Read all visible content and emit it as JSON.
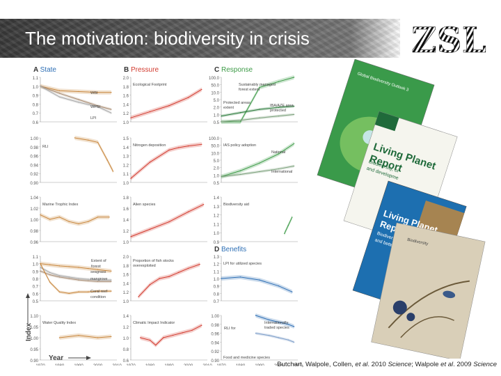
{
  "slide": {
    "title": "The motivation: biodiversity in crisis",
    "logo_text": "ZSL",
    "citation": {
      "part1": "Butchart, Walpole, Collen, ",
      "etal1": "et al",
      "part2": ". 2010 ",
      "journal1": "Science",
      "part3": "; Walpole ",
      "etal2": "et al",
      "part4": ". 2009 ",
      "journal2": "Science"
    }
  },
  "figure": {
    "y_axis_title": "Index",
    "x_axis_title": "Year",
    "x_ticks": [
      "1970",
      "1980",
      "1990",
      "2000",
      "2010"
    ],
    "sections": {
      "state": {
        "letter": "A",
        "label": "State",
        "color": "#2e6fb5"
      },
      "pressure": {
        "letter": "B",
        "label": "Pressure",
        "color": "#d23a2e"
      },
      "response": {
        "letter": "C",
        "label": "Response",
        "color": "#3c9a46"
      },
      "benefits": {
        "letter": "D",
        "label": "Benefits",
        "color": "#2e6fb5"
      }
    }
  },
  "chart_data": [
    {
      "type": "line",
      "panel": "A1",
      "x": [
        1970,
        1980,
        1990,
        2000,
        2007
      ],
      "series": [
        {
          "name": "WBI",
          "values": [
            1.0,
            0.95,
            0.94,
            0.93,
            0.93
          ],
          "color": "#c8863c"
        },
        {
          "name": "WPSI",
          "values": [
            1.0,
            0.92,
            0.85,
            0.78,
            0.74
          ],
          "color": "#a88a70"
        },
        {
          "name": "LPI",
          "values": [
            1.0,
            0.88,
            0.82,
            0.77,
            0.7
          ],
          "color": "#a8a8a8"
        }
      ],
      "y_ticks": [
        "1.1",
        "1.0",
        "0.9",
        "0.8",
        "0.7",
        "0.6"
      ],
      "ylim": [
        0.6,
        1.1
      ]
    },
    {
      "type": "line",
      "panel": "A2",
      "x": [
        1988,
        1995,
        2000,
        2005,
        2008
      ],
      "series": [
        {
          "name": "RLI",
          "values": [
            1.0,
            0.995,
            0.99,
            0.95,
            0.925
          ],
          "color": "#c8863c"
        }
      ],
      "y_ticks": [
        "1.00",
        "0.98",
        "0.96",
        "0.94",
        "0.92",
        "0.90"
      ],
      "ylim": [
        0.9,
        1.0
      ]
    },
    {
      "type": "line",
      "panel": "A3",
      "x": [
        1970,
        1975,
        1980,
        1985,
        1990,
        1995,
        2000,
        2006
      ],
      "series": [
        {
          "name": "Marine Trophic Index",
          "values": [
            1.01,
            1.0,
            1.005,
            0.995,
            0.99,
            0.995,
            1.005,
            1.005
          ],
          "color": "#c8863c"
        }
      ],
      "y_ticks": [
        "1.04",
        "1.02",
        "1.00",
        "0.98",
        "0.96"
      ],
      "ylim": [
        0.95,
        1.05
      ]
    },
    {
      "type": "line",
      "panel": "A4",
      "x": [
        1970,
        1975,
        1980,
        1985,
        1990,
        1995,
        2000,
        2007
      ],
      "series": [
        {
          "name": "Extent of forest",
          "values": [
            1.0,
            0.985,
            0.97,
            0.96,
            0.95,
            0.935,
            0.92,
            0.9
          ],
          "color": "#c8863c"
        },
        {
          "name": "seagrass",
          "values": [
            0.9,
            0.85,
            0.82,
            0.8,
            0.78,
            0.77,
            0.76,
            0.76
          ],
          "color": "#a88a70"
        },
        {
          "name": "mangrove",
          "values": [
            0.95,
            0.88,
            0.84,
            0.82,
            0.8,
            0.79,
            0.78,
            0.78
          ],
          "color": "#a8a8a8"
        },
        {
          "name": "Coral reef condition",
          "values": [
            1.0,
            0.75,
            0.62,
            0.6,
            0.62,
            0.62,
            0.63,
            0.63
          ],
          "color": "#c8863c"
        }
      ],
      "y_ticks": [
        "1.1",
        "1.0",
        "0.9",
        "0.8",
        "0.7",
        "0.6",
        "0.5"
      ],
      "ylim": [
        0.5,
        1.1
      ]
    },
    {
      "type": "line",
      "panel": "A5",
      "x": [
        1980,
        1990,
        2000,
        2007
      ],
      "series": [
        {
          "name": "Water Quality Index",
          "values": [
            1.0,
            1.01,
            1.0,
            1.005
          ],
          "color": "#c8863c"
        }
      ],
      "y_ticks": [
        "1.10",
        "1.05",
        "1.00",
        "0.95",
        "0.90"
      ],
      "ylim": [
        0.9,
        1.1
      ]
    },
    {
      "type": "line",
      "panel": "B1",
      "x": [
        1970,
        1980,
        1990,
        2000,
        2007
      ],
      "series": [
        {
          "name": "Ecological Footprint",
          "values": [
            1.0,
            1.15,
            1.3,
            1.5,
            1.7
          ],
          "color": "#d23a2e"
        }
      ],
      "y_ticks": [
        "2.0",
        "1.8",
        "1.6",
        "1.4",
        "1.2",
        "1.0"
      ],
      "ylim": [
        0.9,
        2.0
      ]
    },
    {
      "type": "line",
      "panel": "B2",
      "x": [
        1970,
        1980,
        1990,
        1995,
        2000,
        2007
      ],
      "series": [
        {
          "name": "Nitrogen deposition",
          "values": [
            1.0,
            1.2,
            1.35,
            1.38,
            1.4,
            1.42
          ],
          "color": "#d23a2e"
        }
      ],
      "y_ticks": [
        "1.5",
        "1.4",
        "1.3",
        "1.2",
        "1.1",
        "1.0"
      ],
      "ylim": [
        0.95,
        1.5
      ]
    },
    {
      "type": "line",
      "panel": "B3",
      "x": [
        1970,
        1980,
        1990,
        2000,
        2008
      ],
      "series": [
        {
          "name": "Alien species",
          "values": [
            1.0,
            1.15,
            1.3,
            1.5,
            1.65
          ],
          "color": "#d23a2e"
        }
      ],
      "y_ticks": [
        "1.8",
        "1.6",
        "1.4",
        "1.2",
        "1.0"
      ],
      "ylim": [
        0.9,
        1.8
      ]
    },
    {
      "type": "line",
      "panel": "B4",
      "x": [
        1974,
        1980,
        1985,
        1990,
        1995,
        2000,
        2006
      ],
      "series": [
        {
          "name": "Proportion of fish stocks overexploited",
          "values": [
            1.0,
            1.3,
            1.45,
            1.5,
            1.6,
            1.7,
            1.8
          ],
          "color": "#d23a2e"
        }
      ],
      "y_ticks": [
        "2.0",
        "1.8",
        "1.6",
        "1.4",
        "1.2",
        "1.0"
      ],
      "ylim": [
        0.9,
        2.0
      ]
    },
    {
      "type": "line",
      "panel": "B5",
      "x": [
        1975,
        1980,
        1983,
        1987,
        1992,
        1997,
        2002,
        2007
      ],
      "series": [
        {
          "name": "Climatic Impact Indicator",
          "values": [
            1.0,
            0.95,
            0.85,
            1.0,
            1.05,
            1.1,
            1.15,
            1.25
          ],
          "color": "#d23a2e"
        }
      ],
      "y_ticks": [
        "1.4",
        "1.2",
        "1.0",
        "0.8",
        "0.6"
      ],
      "ylim": [
        0.55,
        1.45
      ]
    },
    {
      "type": "line",
      "panel": "C1",
      "x": [
        1970,
        1980,
        1990,
        2000,
        2008
      ],
      "series": [
        {
          "name": "Sustainably managed forest extent",
          "values": [
            0,
            0,
            30,
            60,
            100
          ],
          "color": "#3c9a46"
        },
        {
          "name": "Protected areas extent",
          "values": [
            1,
            1.5,
            2.2,
            2.8,
            3.2
          ],
          "color": "#2a7a3a"
        },
        {
          "name": "IBA/AZE area protected",
          "values": [
            0.5,
            0.6,
            0.8,
            1.0,
            1.2
          ],
          "color": "#7aa07a"
        }
      ],
      "y_ticks": [
        "100.0",
        "50.0",
        "10.0",
        "5.0",
        "2.0",
        "1.0",
        "0.5"
      ],
      "ylim": [
        0.5,
        100
      ],
      "scale": "log"
    },
    {
      "type": "line",
      "panel": "C2",
      "x": [
        1970,
        1980,
        1990,
        2000,
        2008
      ],
      "series": [
        {
          "name": "IAS policy adoption: National",
          "values": [
            1,
            2,
            5,
            15,
            50
          ],
          "color": "#3c9a46"
        },
        {
          "name": "International",
          "values": [
            1,
            1.3,
            1.8,
            2.5,
            3.5
          ],
          "color": "#7aa07a"
        }
      ],
      "y_ticks": [
        "100.0",
        "50.0",
        "10.0",
        "5.0",
        "2.0",
        "1.0",
        "0.5"
      ],
      "ylim": [
        0.5,
        100
      ],
      "scale": "log"
    },
    {
      "type": "line",
      "panel": "C3",
      "x": [
        2003,
        2005,
        2007
      ],
      "series": [
        {
          "name": "Biodiversity aid",
          "values": [
            0.95,
            1.05,
            1.15
          ],
          "color": "#3c9a46"
        }
      ],
      "y_ticks": [
        "1.4",
        "1.3",
        "1.2",
        "1.1",
        "1.0",
        "0.9"
      ],
      "ylim": [
        0.85,
        1.4
      ]
    },
    {
      "type": "line",
      "panel": "D1",
      "x": [
        1970,
        1980,
        1990,
        2000,
        2007
      ],
      "series": [
        {
          "name": "LPI for utilized species",
          "values": [
            1.0,
            1.02,
            0.98,
            0.9,
            0.82
          ],
          "color": "#2e6fb5"
        }
      ],
      "y_ticks": [
        "1.3",
        "1.2",
        "1.1",
        "1.0",
        "0.9",
        "0.8",
        "0.7"
      ],
      "ylim": [
        0.7,
        1.3
      ]
    },
    {
      "type": "line",
      "panel": "D2",
      "x": [
        1988,
        1995,
        2000,
        2005,
        2008
      ],
      "series": [
        {
          "name": "Internationally traded species",
          "values": [
            1.0,
            0.99,
            0.985,
            0.98,
            0.975
          ],
          "color": "#2e6fb5"
        },
        {
          "name": "Food and medicine species",
          "values": [
            0.96,
            0.955,
            0.95,
            0.945,
            0.94
          ],
          "color": "#7a9cc8"
        }
      ],
      "y_ticks": [
        "1.00",
        "0.98",
        "0.96",
        "0.94",
        "0.92",
        "0.90"
      ],
      "ylim": [
        0.9,
        1.0
      ]
    }
  ],
  "panel_labels": {
    "A1": [
      "WBI",
      "WPSI",
      "LPI"
    ],
    "A2": [
      "RLI"
    ],
    "A3": [
      "Marine Trophic Index"
    ],
    "A4": [
      "Extent of",
      "forest",
      "seagrass",
      "mangrove",
      "Coral reef",
      "condition"
    ],
    "A5": [
      "Water Quality Index"
    ],
    "B1": [
      "Ecological Footprint"
    ],
    "B2": [
      "Nitrogen deposition"
    ],
    "B3": [
      "Alien species"
    ],
    "B4": [
      "Proportion of fish stocks",
      "overexploited"
    ],
    "B5": [
      "Climatic Impact Indicator"
    ],
    "C1": [
      "Sustainably managed",
      "forest extent",
      "Protected areas",
      "extent",
      "IBA/AZE area",
      "protected"
    ],
    "C2": [
      "IAS policy adoption",
      "National",
      "International"
    ],
    "C3": [
      "Biodiversity aid"
    ],
    "D1": [
      "LPI for utilized species"
    ],
    "D2": [
      "RLI for",
      "Internationally",
      "traded species",
      "Food and medicine species"
    ]
  },
  "covers": [
    {
      "title": "Global Biodiversity Outlook 3",
      "color": "#3a9a4a"
    },
    {
      "title": "Living Planet Report",
      "lines": [
        "Living Planet",
        "Report",
        "Biodiversity, bi",
        "and developme"
      ],
      "color": "#1f6a3a",
      "bg": "#f5f5ee"
    },
    {
      "title": "Living Planet Report 2012",
      "lines": [
        "Living Planet",
        "Report 2012",
        "Biodiversity, biocapacity",
        "and better choices"
      ],
      "color": "#1d6fb0"
    },
    {
      "title": "Biodiversity",
      "color": "#d9cfb8"
    }
  ]
}
